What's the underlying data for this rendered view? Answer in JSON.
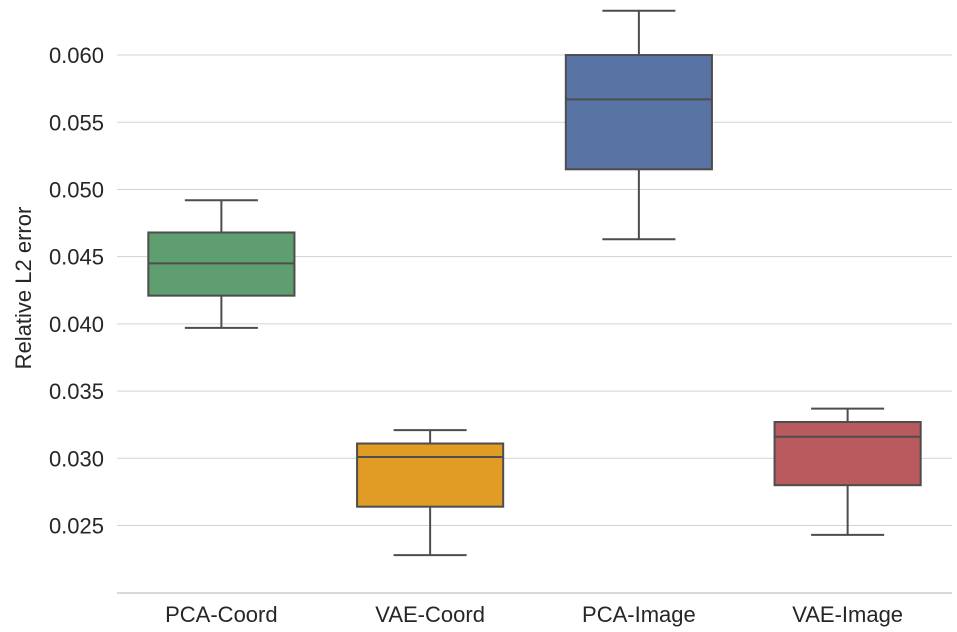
{
  "chart_data": {
    "type": "boxplot",
    "title": "",
    "xlabel": "",
    "ylabel": "Relative L2 error",
    "ylim": [
      0.0205,
      0.0635
    ],
    "yticks": [
      "0.025",
      "0.030",
      "0.035",
      "0.040",
      "0.045",
      "0.050",
      "0.055",
      "0.060"
    ],
    "grid": "horizontal",
    "categories": [
      "PCA-Coord",
      "VAE-Coord",
      "PCA-Image",
      "VAE-Image"
    ],
    "series": [
      {
        "name": "PCA-Coord",
        "color": "#5f9e6e",
        "whisker_low": 0.0397,
        "q1": 0.0421,
        "median": 0.0445,
        "q3": 0.0468,
        "whisker_high": 0.0492
      },
      {
        "name": "VAE-Coord",
        "color": "#e09c24",
        "whisker_low": 0.0228,
        "q1": 0.0264,
        "median": 0.0301,
        "q3": 0.0311,
        "whisker_high": 0.0321
      },
      {
        "name": "PCA-Image",
        "color": "#5874a5",
        "whisker_low": 0.0463,
        "q1": 0.0515,
        "median": 0.0567,
        "q3": 0.06,
        "whisker_high": 0.0633
      },
      {
        "name": "VAE-Image",
        "color": "#b85a5e",
        "whisker_low": 0.0243,
        "q1": 0.028,
        "median": 0.0316,
        "q3": 0.0327,
        "whisker_high": 0.0337
      }
    ]
  }
}
